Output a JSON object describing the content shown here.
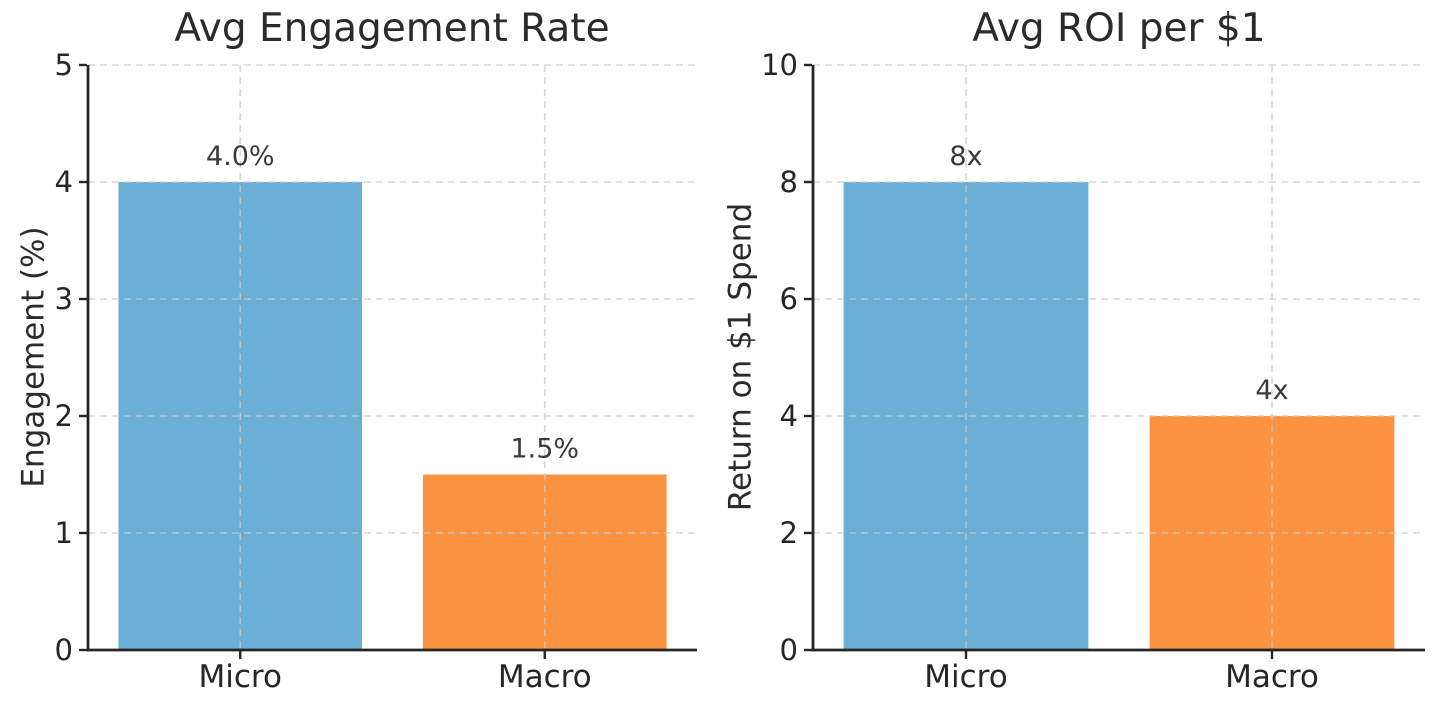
{
  "colors": {
    "bar_series": [
      "#6baed6",
      "#fb923f"
    ],
    "grid": "#c9c9c9",
    "axis": "#262626",
    "tick_text": "#262626",
    "title_text": "#2b2b2b",
    "annotation_text": "#3a3a3a",
    "background": "#ffffff"
  },
  "chart_data": [
    {
      "type": "bar",
      "title": "Avg Engagement Rate",
      "ylabel": "Engagement (%)",
      "xlabel": "",
      "categories": [
        "Micro",
        "Macro"
      ],
      "values": [
        4.0,
        1.5
      ],
      "bar_labels": [
        "4.0%",
        "1.5%"
      ],
      "yticks": [
        0,
        1,
        2,
        3,
        4,
        5
      ],
      "ytick_labels": [
        "0",
        "1",
        "2",
        "3",
        "4",
        "5"
      ],
      "ylim": [
        0,
        5
      ],
      "grid": true,
      "grid_style": "dashed",
      "legend": "none"
    },
    {
      "type": "bar",
      "title": "Avg ROI per $1",
      "ylabel": "Return on $1 Spend",
      "xlabel": "",
      "categories": [
        "Micro",
        "Macro"
      ],
      "values": [
        8,
        4
      ],
      "bar_labels": [
        "8x",
        "4x"
      ],
      "yticks": [
        0,
        2,
        4,
        6,
        8,
        10
      ],
      "ytick_labels": [
        "0",
        "2",
        "4",
        "6",
        "8",
        "10"
      ],
      "ylim": [
        0,
        10
      ],
      "grid": true,
      "grid_style": "dashed",
      "legend": "none"
    }
  ]
}
